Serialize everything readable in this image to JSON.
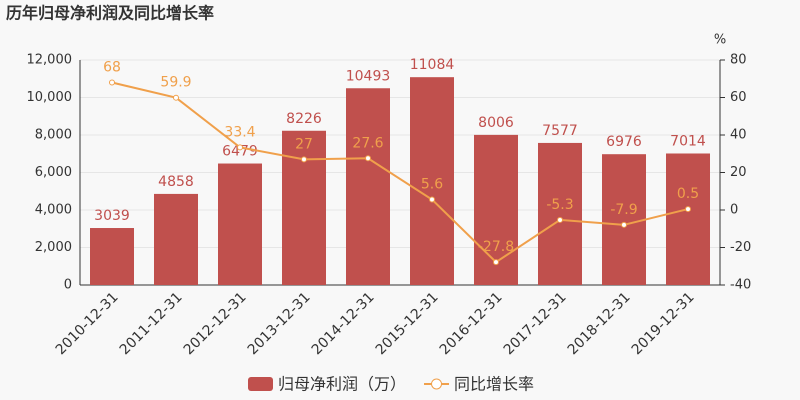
{
  "chart_data": {
    "type": "bar-line",
    "title": "历年归母净利润及同比增长率",
    "categories": [
      "2010-12-31",
      "2011-12-31",
      "2012-12-31",
      "2013-12-31",
      "2014-12-31",
      "2015-12-31",
      "2016-12-31",
      "2017-12-31",
      "2018-12-31",
      "2019-12-31"
    ],
    "series": [
      {
        "name": "归母净利润（万）",
        "type": "bar",
        "color": "#c0504d",
        "values": [
          3039,
          4858,
          6479,
          8226,
          10493,
          11084,
          8006,
          7577,
          6976,
          7014
        ]
      },
      {
        "name": "同比增长率",
        "type": "line",
        "axis": "y2",
        "color": "#f0a04b",
        "values": [
          68,
          59.9,
          33.4,
          27,
          27.6,
          5.6,
          -27.8,
          -5.3,
          -7.9,
          0.5
        ]
      }
    ],
    "ylim": [
      0,
      12000
    ],
    "yticks": [
      0,
      {
        "value": 2000,
        "label": "2,000"
      },
      {
        "value": 4000,
        "label": "4,000"
      },
      {
        "value": 6000,
        "label": "6,000"
      },
      {
        "value": 8000,
        "label": "8,000"
      },
      {
        "value": 10000,
        "label": "10,000"
      },
      {
        "value": 12000,
        "label": "12,000"
      }
    ],
    "y2label": "%",
    "y2lim": [
      -40,
      80
    ],
    "y2ticks": [
      -40,
      -20,
      0,
      20,
      40,
      60,
      80
    ],
    "grid": true
  }
}
